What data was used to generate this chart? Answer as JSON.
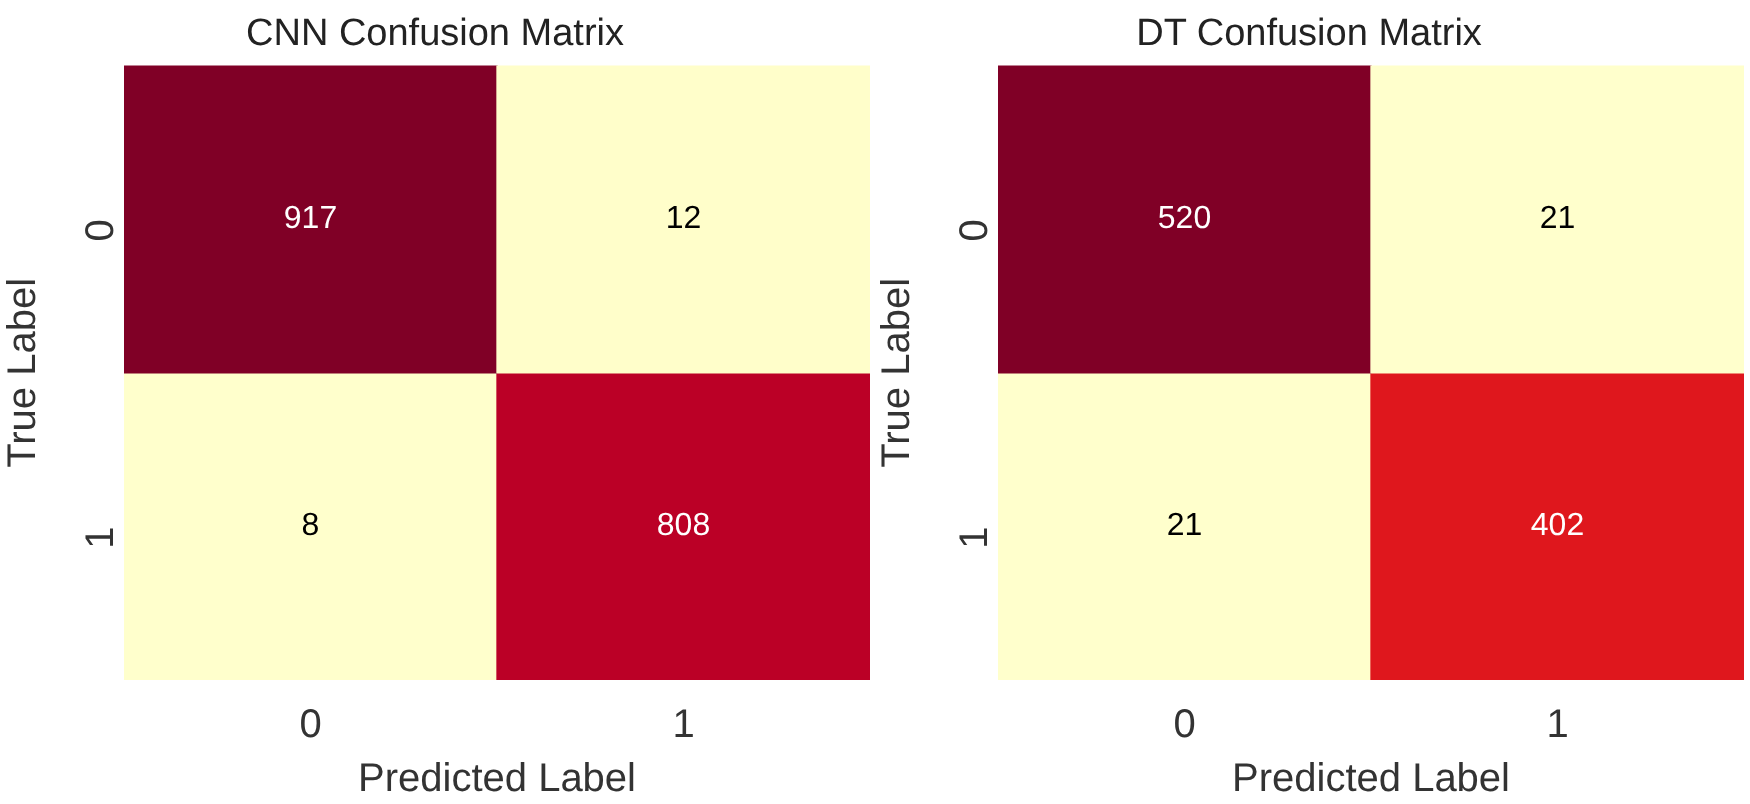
{
  "chart_data": [
    {
      "type": "heatmap",
      "title": "CNN Confusion Matrix",
      "xlabel": "Predicted Label",
      "ylabel": "True Label",
      "categories": [
        "0",
        "1"
      ],
      "y_categories": [
        "0",
        "1"
      ],
      "cells": [
        [
          917,
          12
        ],
        [
          8,
          808
        ]
      ],
      "data_labels": true
    },
    {
      "type": "heatmap",
      "title": "DT Confusion Matrix",
      "xlabel": "Predicted Label",
      "ylabel": "True Label",
      "categories": [
        "0",
        "1"
      ],
      "y_categories": [
        "0",
        "1"
      ],
      "cells": [
        [
          520,
          21
        ],
        [
          21,
          402
        ]
      ],
      "data_labels": true
    }
  ]
}
